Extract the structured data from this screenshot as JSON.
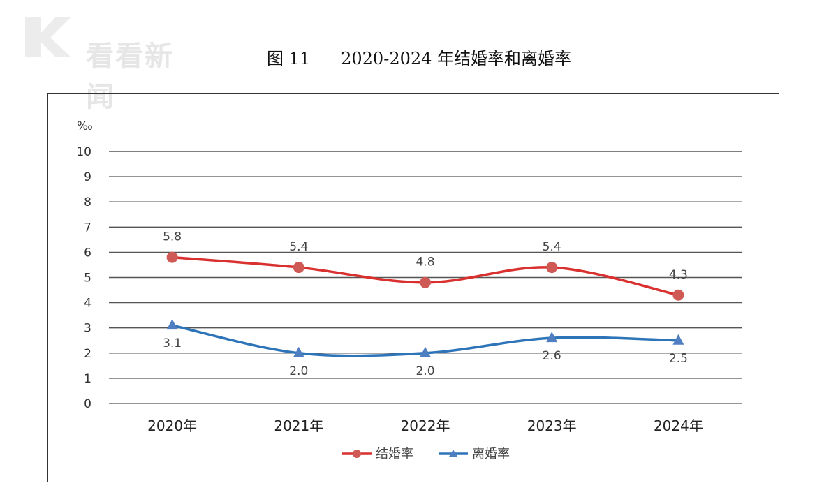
{
  "watermark": {
    "text": "看看新闻"
  },
  "figure": {
    "number": "图 11",
    "title": "2020-2024 年结婚率和离婚率"
  },
  "colors": {
    "marriage": "#d9312f",
    "divorce": "#2e74b8",
    "grid": "#555555",
    "text": "#333333"
  },
  "chart_data": {
    "type": "line",
    "categories": [
      "2020年",
      "2021年",
      "2022年",
      "2023年",
      "2024年"
    ],
    "ylabel": "‰",
    "ylim": [
      0,
      10
    ],
    "yticks": [
      "0",
      "1",
      "2",
      "3",
      "4",
      "5",
      "6",
      "7",
      "8",
      "9",
      "10"
    ],
    "grid": true,
    "legend_position": "bottom-center",
    "series": [
      {
        "name": "结婚率",
        "marker": "circle",
        "values": [
          5.8,
          5.4,
          4.8,
          5.4,
          4.3
        ],
        "labels": [
          "5.8",
          "5.4",
          "4.8",
          "5.4",
          "4.3"
        ]
      },
      {
        "name": "离婚率",
        "marker": "triangle",
        "values": [
          3.1,
          2.0,
          2.0,
          2.6,
          2.5
        ],
        "labels": [
          "3.1",
          "2.0",
          "2.0",
          "2.6",
          "2.5"
        ]
      }
    ]
  }
}
